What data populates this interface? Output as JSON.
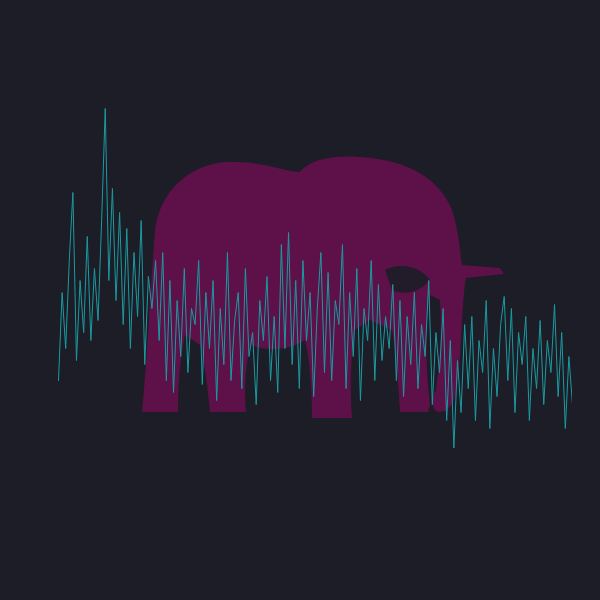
{
  "chart_data": {
    "type": "line",
    "color": "#1a9ba1",
    "tick_labels": false,
    "grid": false,
    "values": [
      30,
      52,
      38,
      60,
      77,
      35,
      55,
      42,
      66,
      40,
      58,
      45,
      70,
      98,
      55,
      78,
      50,
      72,
      44,
      68,
      38,
      62,
      46,
      70,
      34,
      56,
      48,
      60,
      40,
      62,
      30,
      55,
      27,
      50,
      36,
      58,
      32,
      48,
      44,
      60,
      29,
      52,
      38,
      55,
      25,
      48,
      34,
      62,
      30,
      45,
      52,
      28,
      58,
      36,
      42,
      24,
      50,
      40,
      56,
      30,
      46,
      27,
      64,
      38,
      67,
      34,
      55,
      28,
      60,
      40,
      52,
      26,
      48,
      62,
      32,
      57,
      30,
      50,
      44,
      64,
      28,
      52,
      36,
      58,
      25,
      48,
      40,
      60,
      30,
      54,
      35,
      46,
      38,
      54,
      30,
      50,
      26,
      46,
      34,
      52,
      28,
      44,
      36,
      55,
      24,
      42,
      32,
      48,
      20,
      40,
      13,
      35,
      22,
      44,
      28,
      46,
      20,
      40,
      32,
      50,
      18,
      38,
      26,
      44,
      51,
      30,
      48,
      22,
      42,
      34,
      46,
      20,
      38,
      28,
      45,
      24,
      40,
      32,
      49,
      26,
      42,
      18,
      36,
      24
    ]
  }
}
